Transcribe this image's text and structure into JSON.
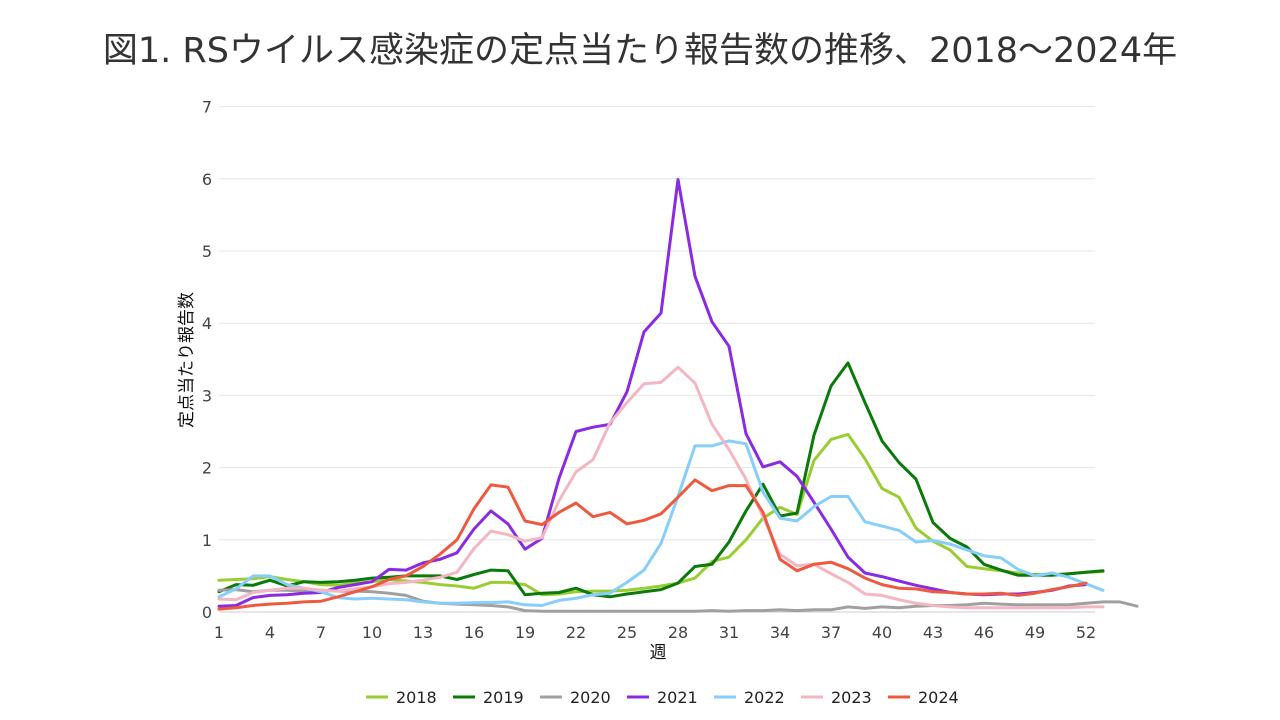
{
  "chart_data": {
    "type": "line",
    "title": "図1. RSウイルス感染症の定点当たり報告数の推移、2018〜2024年",
    "xlabel": "週",
    "ylabel": "定点当たり報告数",
    "xlim": [
      1,
      53
    ],
    "ylim": [
      0,
      7
    ],
    "x_ticks": [
      1,
      4,
      7,
      10,
      13,
      16,
      19,
      22,
      25,
      28,
      31,
      34,
      37,
      40,
      43,
      46,
      49,
      52
    ],
    "y_ticks": [
      0,
      1,
      2,
      3,
      4,
      5,
      6,
      7
    ],
    "grid": "horizontal",
    "legend_position": "bottom",
    "series": [
      {
        "name": "2018",
        "color": "#9acd32",
        "x_start": 1,
        "values": [
          0.44,
          0.45,
          0.46,
          0.49,
          0.45,
          0.42,
          0.38,
          0.37,
          0.4,
          0.42,
          0.45,
          0.43,
          0.41,
          0.38,
          0.36,
          0.33,
          0.41,
          0.41,
          0.38,
          0.24,
          0.25,
          0.28,
          0.29,
          0.29,
          0.3,
          0.33,
          0.36,
          0.4,
          0.47,
          0.7,
          0.76,
          1.0,
          1.3,
          1.45,
          1.35,
          2.1,
          2.39,
          2.46,
          2.12,
          1.71,
          1.59,
          1.16,
          0.98,
          0.86,
          0.63,
          0.6,
          0.57,
          0.54,
          0.52,
          0.52,
          0.53,
          0.55,
          0.56
        ]
      },
      {
        "name": "2019",
        "color": "#0b7a0b",
        "x_start": 1,
        "values": [
          0.28,
          0.38,
          0.37,
          0.44,
          0.36,
          0.42,
          0.41,
          0.42,
          0.44,
          0.47,
          0.48,
          0.5,
          0.5,
          0.5,
          0.45,
          0.52,
          0.58,
          0.57,
          0.24,
          0.26,
          0.27,
          0.33,
          0.24,
          0.21,
          0.25,
          0.28,
          0.31,
          0.4,
          0.63,
          0.66,
          0.97,
          1.4,
          1.77,
          1.33,
          1.37,
          2.45,
          3.13,
          3.45,
          2.9,
          2.37,
          2.07,
          1.84,
          1.24,
          1.02,
          0.9,
          0.66,
          0.58,
          0.51,
          0.51,
          0.51,
          0.53,
          0.55,
          0.57
        ]
      },
      {
        "name": "2020",
        "color": "#a0a0a0",
        "x_start": 1,
        "values": [
          0.3,
          0.31,
          0.28,
          0.3,
          0.3,
          0.29,
          0.3,
          0.29,
          0.29,
          0.28,
          0.26,
          0.23,
          0.15,
          0.12,
          0.11,
          0.1,
          0.09,
          0.07,
          0.02,
          0.01,
          0.01,
          0.01,
          0.01,
          0.01,
          0.01,
          0.01,
          0.01,
          0.01,
          0.01,
          0.02,
          0.01,
          0.02,
          0.02,
          0.03,
          0.02,
          0.03,
          0.03,
          0.07,
          0.05,
          0.07,
          0.06,
          0.08,
          0.09,
          0.09,
          0.1,
          0.12,
          0.11,
          0.1,
          0.1,
          0.1,
          0.1,
          0.12,
          0.14,
          0.14,
          0.08
        ]
      },
      {
        "name": "2021",
        "color": "#8a2be2",
        "x_start": 1,
        "values": [
          0.08,
          0.09,
          0.2,
          0.23,
          0.24,
          0.26,
          0.27,
          0.34,
          0.38,
          0.42,
          0.59,
          0.58,
          0.68,
          0.73,
          0.82,
          1.15,
          1.4,
          1.22,
          0.87,
          1.02,
          1.85,
          2.5,
          2.56,
          2.6,
          3.05,
          3.88,
          4.14,
          5.99,
          4.65,
          4.02,
          3.68,
          2.47,
          2.01,
          2.08,
          1.88,
          1.52,
          1.15,
          0.76,
          0.54,
          0.49,
          0.43,
          0.37,
          0.32,
          0.27,
          0.25,
          0.24,
          0.25,
          0.25,
          0.27,
          0.3,
          0.36,
          0.38
        ]
      },
      {
        "name": "2022",
        "color": "#87cefa",
        "x_start": 1,
        "values": [
          0.21,
          0.32,
          0.5,
          0.5,
          0.38,
          0.33,
          0.28,
          0.2,
          0.18,
          0.19,
          0.18,
          0.17,
          0.14,
          0.12,
          0.12,
          0.13,
          0.13,
          0.14,
          0.1,
          0.09,
          0.16,
          0.19,
          0.24,
          0.26,
          0.41,
          0.58,
          0.95,
          1.6,
          2.3,
          2.3,
          2.37,
          2.33,
          1.66,
          1.3,
          1.26,
          1.46,
          1.6,
          1.6,
          1.25,
          1.19,
          1.13,
          0.97,
          0.99,
          0.94,
          0.86,
          0.78,
          0.75,
          0.59,
          0.5,
          0.54,
          0.48,
          0.39,
          0.3
        ]
      },
      {
        "name": "2023",
        "color": "#f4b6c2",
        "x_start": 1,
        "values": [
          0.18,
          0.17,
          0.27,
          0.3,
          0.33,
          0.33,
          0.3,
          0.29,
          0.32,
          0.35,
          0.39,
          0.41,
          0.44,
          0.48,
          0.55,
          0.88,
          1.12,
          1.07,
          0.98,
          1.03,
          1.54,
          1.94,
          2.11,
          2.62,
          2.9,
          3.16,
          3.18,
          3.39,
          3.17,
          2.6,
          2.25,
          1.84,
          1.32,
          0.8,
          0.64,
          0.66,
          0.53,
          0.41,
          0.25,
          0.23,
          0.17,
          0.12,
          0.09,
          0.07,
          0.06,
          0.06,
          0.06,
          0.06,
          0.06,
          0.06,
          0.06,
          0.07,
          0.07
        ]
      },
      {
        "name": "2024",
        "color": "#ee5a40",
        "x_start": 1,
        "values": [
          0.04,
          0.06,
          0.09,
          0.11,
          0.12,
          0.14,
          0.15,
          0.21,
          0.28,
          0.35,
          0.45,
          0.5,
          0.63,
          0.8,
          1.0,
          1.43,
          1.76,
          1.73,
          1.26,
          1.21,
          1.38,
          1.51,
          1.32,
          1.38,
          1.22,
          1.27,
          1.36,
          1.59,
          1.83,
          1.68,
          1.75,
          1.75,
          1.38,
          0.73,
          0.57,
          0.66,
          0.69,
          0.6,
          0.47,
          0.38,
          0.33,
          0.32,
          0.28,
          0.27,
          0.25,
          0.25,
          0.26,
          0.23,
          0.26,
          0.31,
          0.35,
          0.4
        ]
      }
    ]
  }
}
